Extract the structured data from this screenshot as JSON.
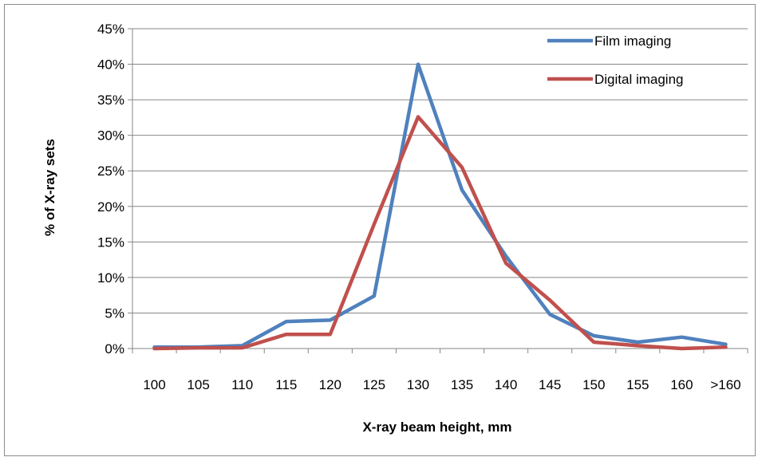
{
  "chart_data": {
    "type": "line",
    "title": "",
    "xlabel": "X-ray beam height, mm",
    "ylabel": "% of X-ray sets",
    "categories": [
      "100",
      "105",
      "110",
      "115",
      "120",
      "125",
      "130",
      "135",
      "140",
      "145",
      "150",
      "155",
      "160",
      ">160"
    ],
    "ylim": [
      0,
      45
    ],
    "yticks": [
      "0%",
      "5%",
      "10%",
      "15%",
      "20%",
      "25%",
      "30%",
      "35%",
      "40%",
      "45%"
    ],
    "grid": "horizontal",
    "legend_position": "top-right",
    "series": [
      {
        "name": "Film imaging",
        "color": "#4f81bd",
        "values": [
          0.2,
          0.2,
          0.4,
          3.8,
          4.0,
          7.4,
          40.0,
          22.3,
          13.0,
          4.8,
          1.8,
          0.9,
          1.6,
          0.6
        ]
      },
      {
        "name": "Digital imaging",
        "color": "#c0504d",
        "values": [
          0.0,
          0.1,
          0.1,
          2.0,
          2.0,
          17.5,
          32.6,
          25.5,
          12.0,
          6.8,
          0.9,
          0.4,
          0.0,
          0.2
        ]
      }
    ]
  }
}
